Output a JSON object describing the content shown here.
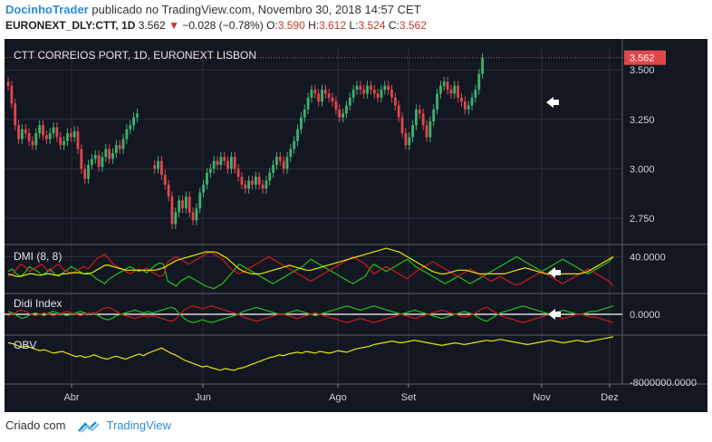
{
  "header": {
    "author": "DocinhoTrader",
    "published_text": "publicado no TradingView.com, Novembro 30, 2018 14:57 CET",
    "symbol_line": "EURONEXT_DLY:CTT, 1D",
    "last": "3.562",
    "change": "−0.028 (−0.78%)",
    "o_label": "O:",
    "o": "3.590",
    "h_label": "H:",
    "h": "3.612",
    "l_label": "L:",
    "l": "3.524",
    "c_label": "C:",
    "c": "3.562"
  },
  "footer": {
    "created_with": "Criado com",
    "brand": "TradingView"
  },
  "colors": {
    "background": "#131722",
    "up": "#3cb371",
    "down": "#e0474c",
    "dmi_plus": "#22c11a",
    "dmi_minus": "#d11a1a",
    "adx": "#e6e600",
    "grid": "#2a2e39"
  },
  "chart_data": {
    "type": "line",
    "title": "CTT CORREIOS PORT, 1D, EURONEXT LISBON",
    "last_price_label": "3.562",
    "x_ticks": [
      "Abr",
      "Jun",
      "Ago",
      "Set",
      "Nov",
      "Dez"
    ],
    "price": {
      "y_ticks": [
        "3.500",
        "3.250",
        "3.000",
        "2.750"
      ],
      "ylim": [
        2.64,
        3.62
      ],
      "close": [
        3.42,
        3.33,
        3.22,
        3.15,
        3.2,
        3.18,
        3.14,
        3.12,
        3.18,
        3.22,
        3.17,
        3.15,
        3.18,
        3.21,
        3.16,
        3.12,
        3.14,
        3.18,
        3.16,
        3.19,
        3.1,
        3.0,
        2.95,
        3.02,
        3.05,
        3.07,
        3.01,
        3.06,
        3.1,
        3.05,
        3.08,
        3.12,
        3.1,
        3.15,
        3.2,
        3.22,
        3.26,
        3.28,
        null,
        null,
        null,
        null,
        null,
        null,
        null,
        null,
        null,
        null,
        null,
        null,
        null,
        null,
        null,
        null,
        null,
        null,
        null,
        null,
        null,
        null,
        null,
        null,
        null,
        null,
        null,
        null,
        null,
        null,
        null,
        null,
        null,
        null,
        null,
        null,
        null,
        null,
        null,
        null,
        null,
        null,
        null,
        null,
        null,
        null,
        null,
        null,
        null,
        null,
        null,
        null,
        null,
        null,
        null,
        null,
        null,
        null,
        null,
        null,
        null,
        null,
        null,
        null,
        null,
        null,
        null,
        null,
        null,
        null,
        null,
        null,
        null,
        null,
        null,
        null,
        null,
        null,
        null,
        null,
        null,
        null,
        null,
        null,
        null,
        null,
        null,
        null,
        null,
        null,
        null,
        null,
        null,
        null,
        null,
        null,
        null,
        null,
        null,
        null,
        null,
        null,
        null,
        null,
        null,
        null,
        null,
        null,
        null,
        null,
        null,
        null,
        null,
        null,
        null,
        null,
        null,
        null,
        null,
        null,
        null,
        null,
        null,
        null,
        null
      ],
      "segments": [
        {
          "from": 0,
          "values": [
            3.42,
            3.33,
            3.22,
            3.15,
            3.2,
            3.18,
            3.14,
            3.12,
            3.18,
            3.22,
            3.17,
            3.15,
            3.18,
            3.21,
            3.16,
            3.12,
            3.14,
            3.18,
            3.16,
            3.19,
            3.1,
            3.0,
            2.95,
            3.02,
            3.05,
            3.07,
            3.01,
            3.06,
            3.1,
            3.05,
            3.08,
            3.12,
            3.1,
            3.15,
            3.2,
            3.22,
            3.26,
            3.28
          ]
        },
        {
          "from": 42,
          "values": [
            3.0,
            3.04,
            2.97,
            2.92,
            2.86,
            2.72,
            2.78,
            2.84,
            2.8,
            2.86,
            2.78,
            2.74,
            2.8,
            2.88,
            2.92,
            2.98,
            3.0,
            3.04,
            3.02,
            3.06,
            3.04,
            3.0,
            3.06,
            3.0,
            2.96,
            2.92,
            2.9,
            2.94,
            2.92,
            2.96,
            2.92,
            2.9,
            2.94,
            2.98,
            3.02,
            3.06,
            3.04,
            3.0,
            3.06,
            3.1,
            3.14,
            3.2,
            3.26,
            3.3,
            3.36,
            3.4,
            3.38,
            3.34,
            3.4,
            3.38,
            3.36,
            3.34,
            3.3,
            3.26,
            3.28,
            3.32,
            3.36,
            3.4,
            3.42,
            3.4,
            3.38,
            3.42,
            3.4,
            3.38,
            3.36,
            3.4,
            3.42,
            3.4,
            3.36,
            3.32,
            3.26,
            3.18,
            3.12,
            3.16,
            3.22,
            3.3,
            3.28,
            3.22,
            3.16,
            3.24,
            3.3,
            3.38,
            3.42,
            3.44,
            3.4,
            3.38,
            3.42,
            3.36,
            3.34,
            3.3,
            3.32,
            3.36,
            3.4,
            3.48,
            3.56
          ]
        }
      ]
    },
    "dmi": {
      "title": "DMI (8, 8)",
      "y_tick": "40.0000",
      "ylim": [
        10,
        50
      ],
      "plus_di": [
        28,
        30,
        26,
        24,
        27,
        32,
        30,
        28,
        25,
        27,
        30,
        26,
        24,
        27,
        29,
        32,
        30,
        28,
        26,
        27,
        25,
        22,
        20,
        18,
        22,
        24,
        26,
        28,
        30,
        32,
        30,
        28,
        29,
        27,
        30,
        33,
        35,
        34,
        20,
        18,
        16,
        20,
        22,
        24,
        22,
        20,
        18,
        16,
        15,
        14,
        16,
        18,
        22,
        26,
        30,
        34,
        32,
        30,
        28,
        26,
        24,
        22,
        20,
        18,
        20,
        22,
        24,
        26,
        28,
        30,
        32,
        35,
        38,
        36,
        34,
        32,
        30,
        28,
        26,
        24,
        22,
        20,
        18,
        20,
        22,
        24,
        30,
        34,
        32,
        30,
        28,
        30,
        32,
        34,
        36,
        38,
        35,
        32,
        30,
        28,
        26,
        24,
        22,
        20,
        18,
        20,
        22,
        24,
        22,
        20,
        18,
        20,
        22,
        24,
        26,
        28,
        30,
        32,
        34,
        36,
        38,
        40,
        38,
        36,
        34,
        32,
        30,
        28,
        30,
        32,
        34,
        36,
        38,
        36,
        34,
        32,
        30,
        28,
        26,
        28,
        30,
        32,
        34,
        36,
        40
      ],
      "minus_di": [
        24,
        26,
        30,
        34,
        32,
        28,
        30,
        32,
        34,
        30,
        28,
        32,
        34,
        30,
        28,
        26,
        28,
        30,
        32,
        30,
        34,
        38,
        40,
        42,
        38,
        34,
        32,
        30,
        28,
        26,
        28,
        30,
        29,
        31,
        28,
        26,
        24,
        25,
        36,
        38,
        40,
        38,
        36,
        34,
        36,
        38,
        40,
        42,
        44,
        42,
        40,
        38,
        34,
        30,
        28,
        26,
        28,
        30,
        32,
        34,
        36,
        38,
        40,
        38,
        36,
        34,
        32,
        30,
        28,
        26,
        24,
        22,
        20,
        22,
        24,
        26,
        28,
        30,
        32,
        34,
        36,
        38,
        40,
        38,
        36,
        34,
        30,
        26,
        28,
        30,
        32,
        30,
        28,
        26,
        24,
        22,
        25,
        28,
        30,
        32,
        34,
        36,
        34,
        32,
        30,
        28,
        26,
        24,
        26,
        28,
        30,
        28,
        26,
        24,
        22,
        20,
        22,
        24,
        22,
        20,
        18,
        17,
        18,
        20,
        22,
        24,
        26,
        28,
        26,
        24,
        22,
        20,
        18,
        20,
        22,
        24,
        26,
        28,
        30,
        28,
        26,
        24,
        22,
        20,
        16
      ],
      "adx": [
        26,
        25,
        24,
        24,
        25,
        26,
        26,
        25,
        25,
        26,
        26,
        25,
        25,
        26,
        26,
        27,
        27,
        27,
        26,
        26,
        27,
        29,
        31,
        33,
        33,
        32,
        31,
        30,
        29,
        29,
        29,
        29,
        29,
        29,
        29,
        29,
        30,
        31,
        33,
        35,
        37,
        38,
        39,
        40,
        41,
        42,
        43,
        44,
        44,
        44,
        43,
        41,
        39,
        36,
        33,
        30,
        28,
        27,
        26,
        26,
        26,
        27,
        28,
        29,
        30,
        31,
        32,
        33,
        32,
        31,
        30,
        29,
        29,
        30,
        31,
        32,
        33,
        34,
        35,
        36,
        37,
        38,
        39,
        40,
        41,
        42,
        43,
        44,
        45,
        46,
        47,
        46,
        45,
        44,
        42,
        40,
        38,
        36,
        34,
        32,
        30,
        28,
        27,
        26,
        26,
        27,
        28,
        29,
        29,
        29,
        28,
        27,
        26,
        26,
        26,
        26,
        26,
        26,
        26,
        27,
        28,
        29,
        30,
        31,
        30,
        29,
        28,
        27,
        26,
        26,
        26,
        26,
        26,
        26,
        26,
        26,
        26,
        27,
        28,
        30,
        32,
        34,
        36,
        38,
        40
      ]
    },
    "didi": {
      "title": "Didi Index",
      "y_tick": "0.0000",
      "ylim": [
        -0.15,
        0.15
      ],
      "fast": [
        0.02,
        0.01,
        -0.01,
        -0.03,
        -0.02,
        0.0,
        0.01,
        0.0,
        -0.01,
        0.01,
        0.02,
        0.01,
        0.0,
        -0.01,
        0.0,
        0.01,
        0.02,
        0.01,
        0.0,
        0.01,
        -0.01,
        -0.03,
        -0.04,
        -0.03,
        -0.01,
        0.0,
        0.01,
        0.02,
        0.03,
        0.02,
        0.01,
        0.02,
        0.01,
        0.02,
        0.03,
        0.04,
        0.05,
        0.04,
        0.0,
        -0.03,
        -0.05,
        -0.06,
        -0.05,
        -0.04,
        -0.05,
        -0.06,
        -0.05,
        -0.04,
        -0.03,
        -0.02,
        -0.01,
        0.0,
        0.02,
        0.03,
        0.04,
        0.05,
        0.04,
        0.03,
        0.02,
        0.01,
        0.0,
        0.0,
        0.01,
        0.02,
        0.03,
        0.02,
        0.01,
        0.0,
        -0.01,
        0.0,
        0.01,
        0.02,
        0.03,
        0.04,
        0.05,
        0.06,
        0.05,
        0.04,
        0.03,
        0.04,
        0.05,
        0.06,
        0.05,
        0.04,
        0.03,
        0.02,
        0.01,
        0.0,
        0.01,
        0.02,
        0.03,
        0.02,
        0.01,
        0.0,
        -0.01,
        -0.02,
        -0.03,
        -0.02,
        -0.01,
        0.0,
        0.01,
        0.02,
        0.01,
        0.0,
        -0.02,
        -0.04,
        -0.05,
        -0.03,
        -0.01,
        0.01,
        0.02,
        0.03,
        0.04,
        0.05,
        0.06,
        0.05,
        0.04,
        0.03,
        0.02,
        0.01,
        0.0,
        0.01,
        0.02,
        0.03,
        0.02,
        0.01,
        0.0,
        0.0,
        0.01,
        0.02,
        0.02,
        0.03,
        0.04,
        0.05,
        0.06
      ],
      "slow": [
        -0.01,
        0.0,
        0.02,
        0.03,
        0.02,
        0.0,
        -0.01,
        0.0,
        0.01,
        0.0,
        -0.01,
        0.0,
        0.01,
        0.02,
        0.01,
        0.0,
        -0.01,
        0.0,
        0.01,
        0.0,
        0.02,
        0.04,
        0.05,
        0.04,
        0.02,
        0.0,
        -0.01,
        -0.02,
        -0.03,
        -0.02,
        -0.01,
        -0.02,
        -0.01,
        -0.02,
        -0.03,
        -0.04,
        -0.05,
        -0.04,
        0.0,
        0.03,
        0.05,
        0.06,
        0.05,
        0.04,
        0.05,
        0.06,
        0.05,
        0.04,
        0.03,
        0.02,
        0.01,
        0.0,
        -0.02,
        -0.03,
        -0.04,
        -0.05,
        -0.04,
        -0.03,
        -0.02,
        -0.01,
        0.0,
        0.0,
        -0.01,
        -0.02,
        -0.03,
        -0.02,
        -0.01,
        0.0,
        0.01,
        0.0,
        -0.01,
        -0.02,
        -0.03,
        -0.04,
        -0.05,
        -0.06,
        -0.05,
        -0.04,
        -0.03,
        -0.04,
        -0.05,
        -0.06,
        -0.05,
        -0.04,
        -0.03,
        -0.02,
        -0.01,
        0.0,
        -0.01,
        -0.02,
        -0.03,
        -0.02,
        -0.01,
        0.0,
        0.01,
        0.02,
        0.03,
        0.02,
        0.01,
        0.0,
        -0.01,
        -0.02,
        -0.01,
        0.0,
        0.02,
        0.04,
        0.05,
        0.03,
        0.01,
        -0.01,
        -0.02,
        -0.03,
        -0.04,
        -0.05,
        -0.06,
        -0.05,
        -0.04,
        -0.03,
        -0.02,
        -0.01,
        0.0,
        -0.01,
        -0.02,
        -0.03,
        -0.02,
        -0.01,
        0.0,
        0.0,
        -0.01,
        -0.02,
        -0.02,
        -0.03,
        -0.04,
        -0.05,
        -0.06
      ]
    },
    "obv": {
      "title": "OBV",
      "y_tick": "-8000000.0000",
      "ylim": [
        -8400000,
        3000000
      ],
      "values": [
        1.2,
        1.0,
        0.6,
        0.2,
        0.4,
        0.1,
        -0.3,
        -0.6,
        -0.4,
        -0.8,
        -1.2,
        -1.0,
        -0.8,
        -1.2,
        -1.6,
        -2.0,
        -1.8,
        -2.2,
        -2.0,
        -1.6,
        -2.0,
        -2.4,
        -2.6,
        -2.2,
        -1.9,
        -2.3,
        -2.6,
        -2.2,
        -1.8,
        -1.4,
        -1.8,
        -1.2,
        -0.8,
        -0.4,
        0.0,
        -0.6,
        -1.2,
        -1.6,
        -2.2,
        -2.8,
        -3.2,
        -3.6,
        -4.0,
        -4.4,
        -4.2,
        -4.6,
        -4.9,
        -5.2,
        -4.8,
        -5.0,
        -5.2,
        -4.8,
        -4.6,
        -4.2,
        -3.8,
        -3.4,
        -3.0,
        -2.6,
        -2.2,
        -2.0,
        -1.6,
        -1.8,
        -1.4,
        -1.2,
        -1.0,
        -1.2,
        -0.8,
        -1.0,
        -1.2,
        -0.8,
        -1.0,
        -1.2,
        -1.0,
        -0.6,
        -0.8,
        -1.0,
        -0.6,
        -0.2,
        0.0,
        0.2,
        0.4,
        0.8,
        1.0,
        1.2,
        1.4,
        1.6,
        1.4,
        1.2,
        1.4,
        1.6,
        1.8,
        1.6,
        1.4,
        1.2,
        1.0,
        0.8,
        0.6,
        0.8,
        1.0,
        1.2,
        1.0,
        0.8,
        1.0,
        1.2,
        1.4,
        1.6,
        1.8,
        1.6,
        1.8,
        2.0,
        1.8,
        1.6,
        1.4,
        1.2,
        1.0,
        0.8,
        1.0,
        1.2,
        1.4,
        1.6,
        1.8,
        1.6,
        1.4,
        1.2,
        1.4,
        1.6,
        1.8,
        1.6,
        1.4,
        1.6,
        1.8,
        2.0,
        2.2,
        2.4,
        2.6
      ]
    }
  }
}
